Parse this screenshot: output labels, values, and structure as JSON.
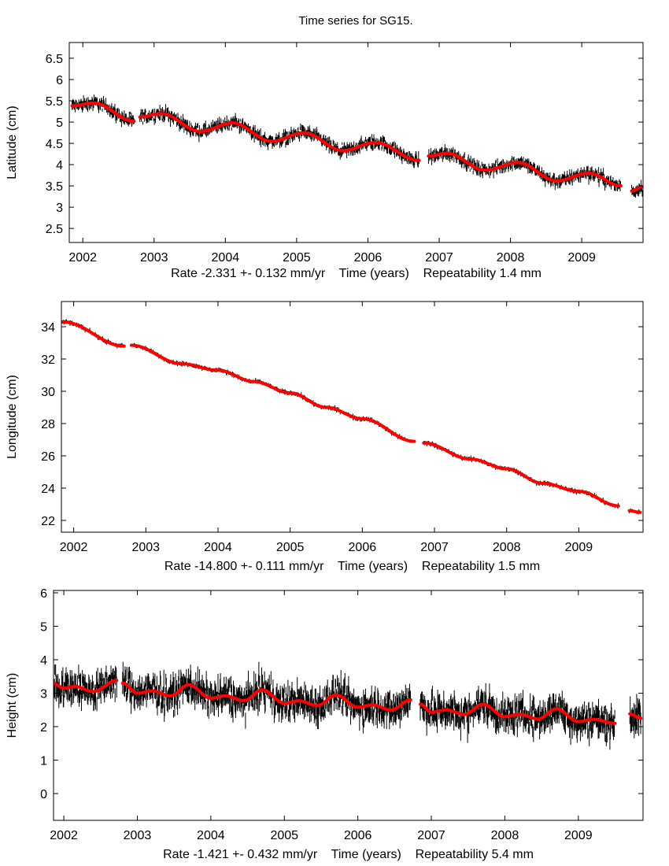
{
  "title": "Time series for SG15.",
  "colors": {
    "observations": "#000000",
    "fit": "#ff0000",
    "frame": "#000000"
  },
  "chart_data": [
    {
      "type": "scatter",
      "ylabel": "Latitude (cm)",
      "xlabel": "Rate -2.331 +- 0.132 mm/yr    Time (years)    Repeatability 1.4 mm",
      "xlim": [
        2001.81,
        2009.86
      ],
      "ylim": [
        2.17,
        6.87
      ],
      "xticks": [
        2002,
        2003,
        2004,
        2005,
        2006,
        2007,
        2008,
        2009
      ],
      "yticks": [
        2.5,
        3,
        3.5,
        4,
        4.5,
        5,
        5.5,
        6,
        6.5
      ],
      "grid": false,
      "scatter_halfwidth": 0.25,
      "fit_segments": [
        [
          [
            2001.85,
            5.38
          ],
          [
            2002.15,
            5.45
          ],
          [
            2002.72,
            5.02
          ]
        ],
        [
          [
            2002.8,
            5.12
          ],
          [
            2003.1,
            5.2
          ],
          [
            2003.65,
            4.78
          ],
          [
            2004.1,
            4.98
          ],
          [
            2004.65,
            4.55
          ],
          [
            2005.1,
            4.75
          ],
          [
            2005.65,
            4.33
          ],
          [
            2006.1,
            4.52
          ],
          [
            2006.72,
            4.1
          ]
        ],
        [
          [
            2006.85,
            4.2
          ],
          [
            2007.1,
            4.27
          ],
          [
            2007.65,
            3.87
          ],
          [
            2008.1,
            4.05
          ],
          [
            2008.65,
            3.62
          ],
          [
            2009.1,
            3.8
          ],
          [
            2009.55,
            3.5
          ]
        ],
        [
          [
            2009.7,
            3.38
          ],
          [
            2009.85,
            3.48
          ]
        ]
      ]
    },
    {
      "type": "scatter",
      "ylabel": "Longitude (cm)",
      "xlabel": "Rate -14.800 +- 0.111 mm/yr    Time (years)    Repeatability 1.5 mm",
      "xlim": [
        2001.83,
        2009.89
      ],
      "ylim": [
        21.27,
        35.56
      ],
      "xticks": [
        2002,
        2003,
        2004,
        2005,
        2006,
        2007,
        2008,
        2009
      ],
      "yticks": [
        22,
        24,
        26,
        28,
        30,
        32,
        34
      ],
      "grid": false,
      "scatter_halfwidth": 0.22,
      "fit_segments": [
        [
          [
            2001.85,
            34.3
          ],
          [
            2002.7,
            32.8
          ]
        ],
        [
          [
            2002.8,
            32.85
          ],
          [
            2003.5,
            31.7
          ],
          [
            2004.0,
            31.3
          ],
          [
            2004.5,
            30.6
          ],
          [
            2005.0,
            29.9
          ],
          [
            2005.5,
            29.0
          ],
          [
            2006.0,
            28.3
          ],
          [
            2006.72,
            26.9
          ]
        ],
        [
          [
            2006.85,
            26.8
          ],
          [
            2007.5,
            25.8
          ],
          [
            2008.0,
            25.2
          ],
          [
            2008.5,
            24.3
          ],
          [
            2009.0,
            23.8
          ],
          [
            2009.55,
            22.9
          ]
        ],
        [
          [
            2009.7,
            22.6
          ],
          [
            2009.85,
            22.5
          ]
        ]
      ]
    },
    {
      "type": "scatter",
      "ylabel": "Height (cm)",
      "xlabel": "Rate -1.421 +- 0.432 mm/yr    Time (years)    Repeatability 5.4 mm",
      "xlim": [
        2001.86,
        2009.88
      ],
      "ylim": [
        -0.8,
        6.07
      ],
      "xticks": [
        2002,
        2003,
        2004,
        2005,
        2006,
        2007,
        2008,
        2009
      ],
      "yticks": [
        0,
        1,
        2,
        3,
        4,
        5,
        6
      ],
      "grid": false,
      "scatter_halfwidth": 0.8,
      "fit_segments": [
        [
          [
            2001.85,
            3.3
          ],
          [
            2002.0,
            3.15
          ],
          [
            2002.15,
            3.2
          ],
          [
            2002.4,
            3.05
          ],
          [
            2002.72,
            3.38
          ]
        ],
        [
          [
            2002.8,
            3.3
          ],
          [
            2003.0,
            3.0
          ],
          [
            2003.2,
            3.07
          ],
          [
            2003.45,
            2.92
          ],
          [
            2003.7,
            3.25
          ],
          [
            2004.0,
            2.85
          ],
          [
            2004.2,
            2.92
          ],
          [
            2004.45,
            2.78
          ],
          [
            2004.7,
            3.1
          ],
          [
            2005.0,
            2.7
          ],
          [
            2005.2,
            2.77
          ],
          [
            2005.45,
            2.63
          ],
          [
            2005.7,
            2.95
          ],
          [
            2006.0,
            2.58
          ],
          [
            2006.2,
            2.65
          ],
          [
            2006.45,
            2.5
          ],
          [
            2006.72,
            2.8
          ]
        ],
        [
          [
            2006.85,
            2.67
          ],
          [
            2007.0,
            2.43
          ],
          [
            2007.2,
            2.5
          ],
          [
            2007.45,
            2.37
          ],
          [
            2007.7,
            2.67
          ],
          [
            2008.0,
            2.3
          ],
          [
            2008.2,
            2.37
          ],
          [
            2008.45,
            2.23
          ],
          [
            2008.7,
            2.53
          ],
          [
            2009.0,
            2.15
          ],
          [
            2009.2,
            2.22
          ],
          [
            2009.5,
            2.1
          ]
        ],
        [
          [
            2009.7,
            2.38
          ],
          [
            2009.85,
            2.25
          ]
        ]
      ]
    }
  ]
}
